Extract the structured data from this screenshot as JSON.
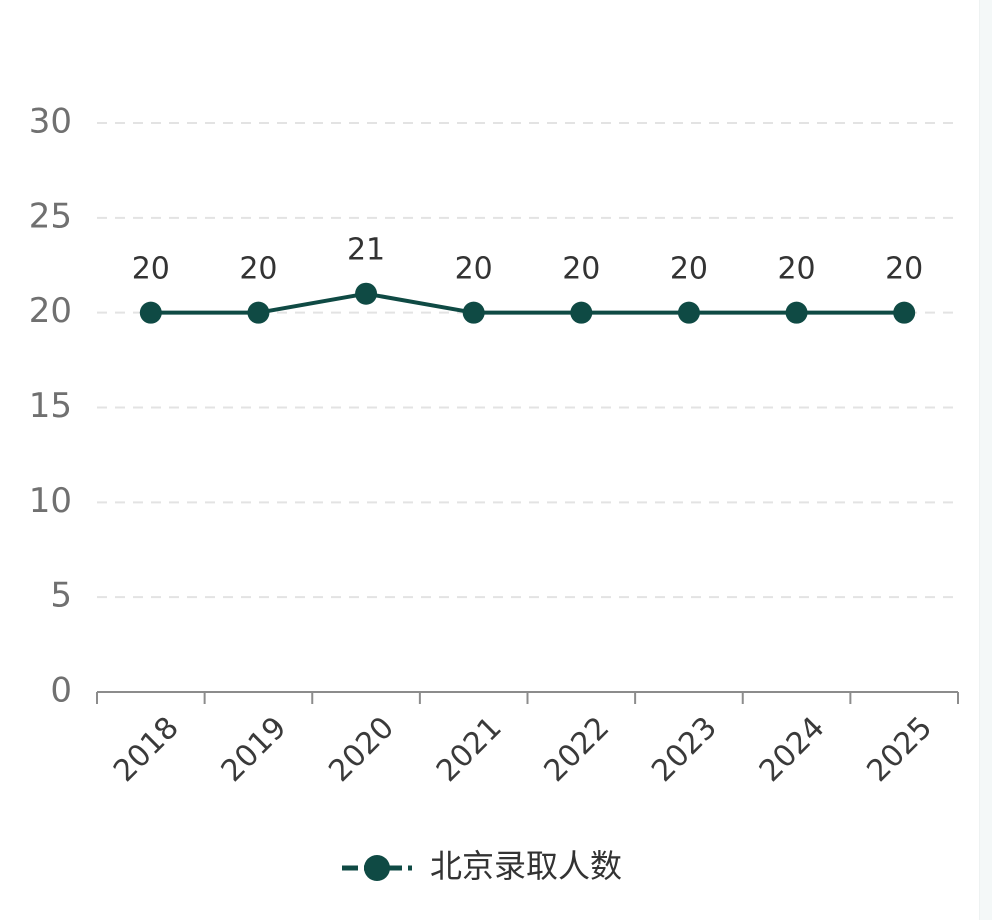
{
  "chart_data": {
    "type": "line",
    "categories": [
      "2018",
      "2019",
      "2020",
      "2021",
      "2022",
      "2023",
      "2024",
      "2025"
    ],
    "series": [
      {
        "name": "北京录取人数",
        "values": [
          20,
          20,
          21,
          20,
          20,
          20,
          20,
          20
        ],
        "color": "#0f4a44"
      }
    ],
    "yticks": [
      0,
      5,
      10,
      15,
      20,
      25,
      30
    ],
    "ylim": [
      0,
      30
    ],
    "grid": true,
    "grid_color": "#e3e3e3",
    "axis_color": "#8c8c8c",
    "data_labels": true,
    "legend_position": "bottom-center",
    "xlabel": "",
    "ylabel": "",
    "title": ""
  }
}
